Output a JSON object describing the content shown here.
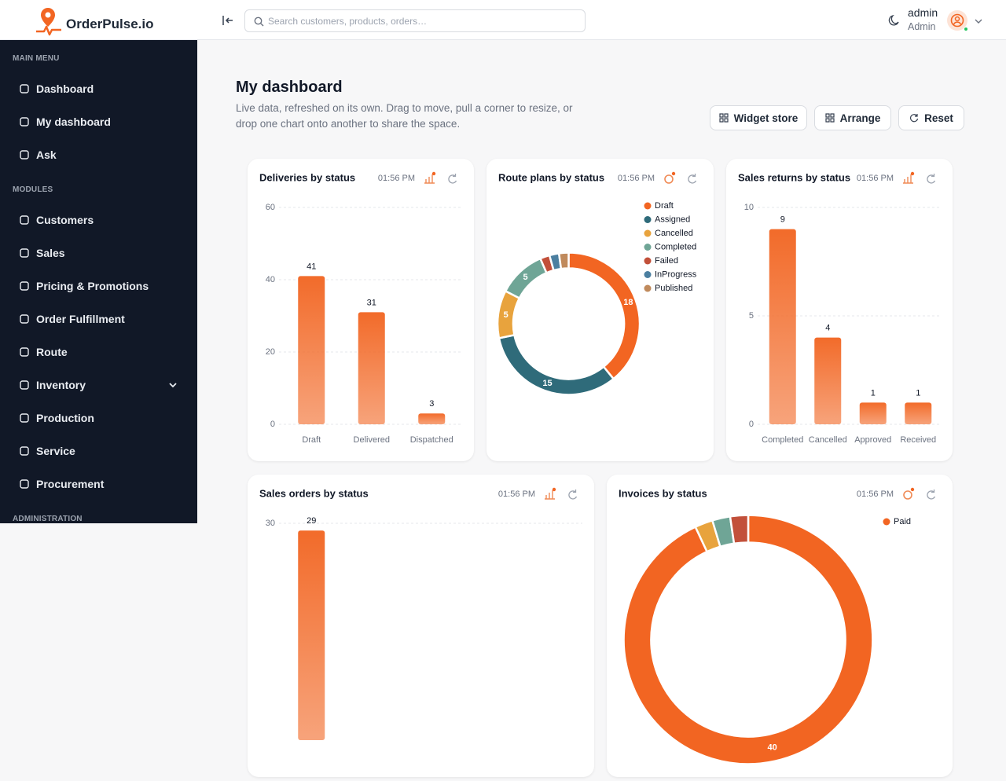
{
  "header": {
    "brand": "OrderPulse.io",
    "search_placeholder": "Search customers, products, orders…",
    "user_name": "admin",
    "user_role": "Admin"
  },
  "sidebar": {
    "sections": [
      {
        "title": "MAIN MENU",
        "items": [
          "Dashboard",
          "My dashboard",
          "Ask"
        ]
      },
      {
        "title": "MODULES",
        "items": [
          "Customers",
          "Sales",
          "Pricing & Promotions",
          "Order Fulfillment",
          "Route",
          "Inventory",
          "Production",
          "Service",
          "Procurement"
        ]
      },
      {
        "title": "ADMINISTRATION"
      }
    ]
  },
  "dashboard": {
    "title": "My dashboard",
    "subtitle": "Live data, refreshed on its own. Drag to move, pull a corner to resize, or drop one chart onto another to share the space.",
    "actions": [
      "Widget store",
      "Arrange",
      "Reset"
    ]
  },
  "chart_data": [
    {
      "type": "bar",
      "title": "Deliveries by status",
      "updated": "01:56 PM",
      "categories": [
        "Draft",
        "Delivered",
        "Dispatched"
      ],
      "values": [
        41,
        31,
        3
      ],
      "color": "#f26b2a",
      "ylim": [
        0,
        60
      ],
      "yticks": [
        0,
        20,
        40,
        60
      ],
      "grid": true
    },
    {
      "type": "donut",
      "title": "Route plans by status",
      "updated": "01:56 PM",
      "categories": [
        "Draft",
        "Assigned",
        "Cancelled",
        "Completed",
        "Failed",
        "InProgress",
        "Published"
      ],
      "values": [
        18,
        15,
        5,
        5,
        1,
        1,
        1
      ],
      "colors": [
        "#f26522",
        "#2f6b7a",
        "#e8a33d",
        "#6fa596",
        "#c2503a",
        "#4b7fa0",
        "#c08a5c"
      ],
      "legend": "top-right"
    },
    {
      "type": "bar",
      "title": "Sales returns by status",
      "updated": "01:56 PM",
      "categories": [
        "Completed",
        "Cancelled",
        "Approved",
        "Received"
      ],
      "values": [
        9,
        4,
        1,
        1
      ],
      "color": "#f26b2a",
      "ylim": [
        0,
        10
      ],
      "yticks": [
        0,
        5,
        10
      ],
      "grid": true
    },
    {
      "type": "bar",
      "title": "Sales orders by status",
      "updated": "01:56 PM",
      "categories": [
        null
      ],
      "values": [
        29
      ],
      "color": "#f26b2a",
      "ylim": [
        0,
        30
      ],
      "yticks": [
        30
      ],
      "grid": true
    },
    {
      "type": "donut",
      "title": "Invoices by status",
      "updated": "01:56 PM",
      "categories": [
        "Paid",
        null,
        null,
        null
      ],
      "values": [
        40,
        1,
        1,
        1
      ],
      "colors": [
        "#f26522",
        "#e8a33d",
        "#6fa596",
        "#c2503a"
      ],
      "legend": "top-right"
    }
  ]
}
